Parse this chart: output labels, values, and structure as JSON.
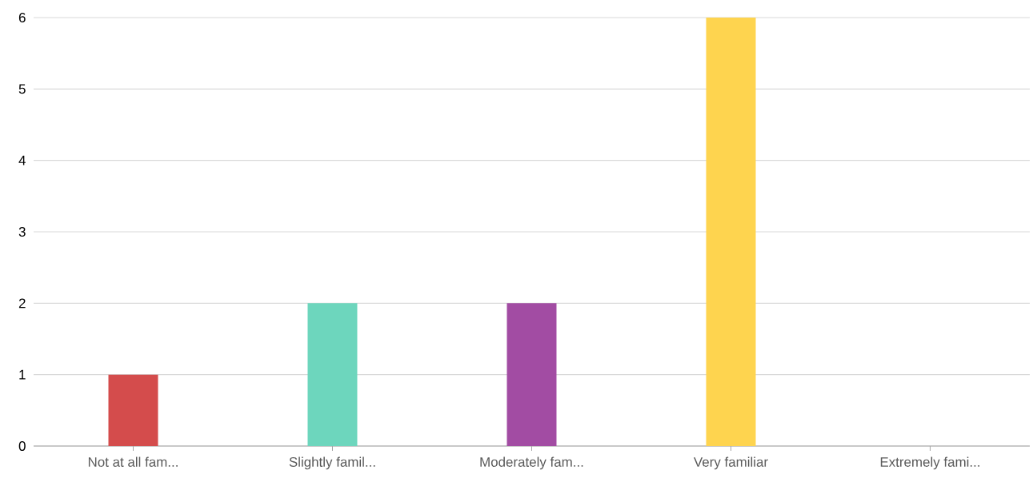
{
  "chart_data": {
    "type": "bar",
    "categories": [
      "Not at all fam...",
      "Slightly famil...",
      "Moderately fam...",
      "Very familiar",
      "Extremely fami..."
    ],
    "values": [
      1,
      2,
      2,
      6,
      0
    ],
    "colors": [
      "#d44c4c",
      "#6dd6bd",
      "#a24ca3",
      "#fed44f",
      "#8e8e8e"
    ],
    "ylim": [
      0,
      6
    ],
    "yticks": [
      0,
      1,
      2,
      3,
      4,
      5,
      6
    ],
    "grid": "y"
  }
}
